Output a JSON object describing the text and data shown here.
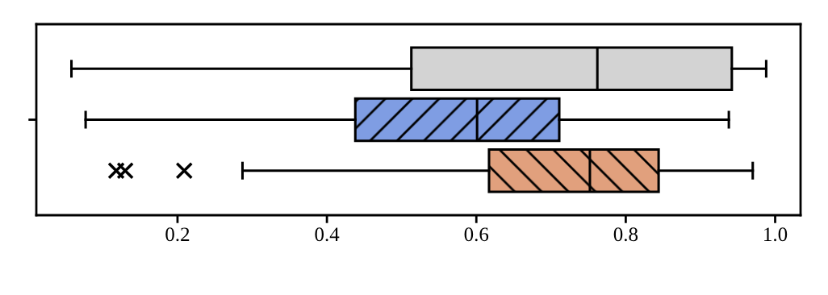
{
  "chart_data": {
    "type": "box",
    "orientation": "horizontal",
    "categories": [
      null
    ],
    "xlim": [
      0.011,
      1.034
    ],
    "xticks": [
      0.2,
      0.4,
      0.6,
      0.8,
      {
        "value": 1.0,
        "label": "1.0"
      }
    ],
    "series": [
      {
        "color": "#d3d3d3",
        "boxes": [
          {
            "low": 0.058,
            "q1": 0.513,
            "median": 0.762,
            "q3": 0.942,
            "high": 0.988
          }
        ]
      },
      {
        "color": "#7f9de3",
        "boxes": [
          {
            "low": 0.077,
            "q1": 0.438,
            "median": 0.601,
            "q3": 0.711,
            "high": 0.938
          }
        ]
      },
      {
        "color": "#e1a07d",
        "boxes": [
          {
            "low": 0.287,
            "q1": 0.617,
            "median": 0.752,
            "q3": 0.844,
            "high": 0.97,
            "outliers": [
              0.118,
              0.13,
              0.209
            ]
          }
        ]
      }
    ],
    "grid": false,
    "legend": false
  }
}
